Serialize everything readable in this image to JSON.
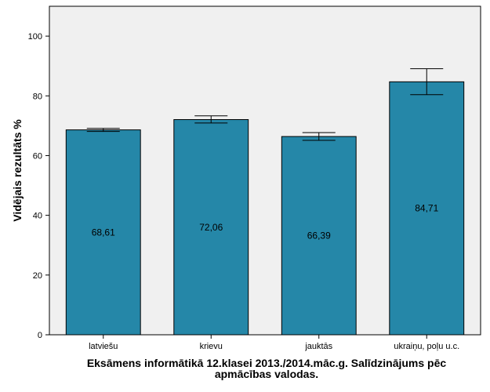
{
  "chart_data": {
    "type": "bar",
    "categories": [
      "latviešu",
      "krievu",
      "jauktās",
      "ukraiņu, poļu u.c."
    ],
    "values": [
      68.61,
      72.06,
      66.39,
      84.71
    ],
    "value_labels": [
      "68,61",
      "72,06",
      "66,39",
      "84,71"
    ],
    "error_bars": [
      {
        "low": 68.1,
        "high": 69.1
      },
      {
        "low": 70.9,
        "high": 73.3
      },
      {
        "low": 65.1,
        "high": 67.7
      },
      {
        "low": 80.4,
        "high": 89.1
      }
    ],
    "xlabel_line1": "Eksāmens informātikā 12.klasei 2013./2014.māc.g. Salīdzinājums pēc",
    "xlabel_line2": "apmācības valodas.",
    "ylabel": "Vidējais rezultāts %",
    "ylim": [
      0,
      110
    ],
    "yticks": [
      0,
      20,
      40,
      60,
      80,
      100
    ],
    "grid": false,
    "colors": {
      "bar": "#2587a8",
      "plot_bg": "#f0f0f0"
    }
  }
}
